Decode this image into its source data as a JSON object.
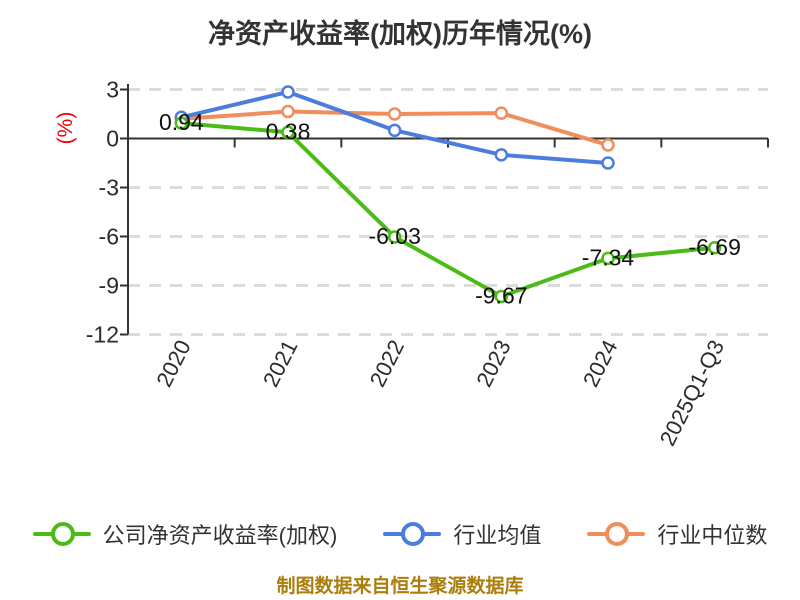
{
  "title": "净资产收益率(加权)历年情况(%)",
  "y_axis": {
    "label": "(%)",
    "label_color": "#ee0000",
    "ticks": [
      3,
      0,
      -3,
      -6,
      -9,
      -12
    ],
    "min": -12,
    "max": 3
  },
  "chart_data": {
    "type": "line",
    "title": "净资产收益率(加权)历年情况(%)",
    "categories": [
      "2020",
      "2021",
      "2022",
      "2023",
      "2024",
      "2025Q1-Q3"
    ],
    "series": [
      {
        "name": "公司净资产收益率(加权)",
        "color": "#4cbb17",
        "values": [
          0.94,
          0.38,
          -6.03,
          -9.67,
          -7.34,
          -6.69
        ],
        "point_labels": [
          "0.94",
          "0.38",
          "-6.03",
          "-9.67",
          "-7.34",
          "-6.69"
        ]
      },
      {
        "name": "行业均值",
        "color": "#4d7cdf",
        "values": [
          1.3,
          2.85,
          0.5,
          -1.0,
          -1.5,
          null
        ],
        "point_labels": null
      },
      {
        "name": "行业中位数",
        "color": "#f18d5b",
        "values": [
          1.2,
          1.65,
          1.5,
          1.55,
          -0.4,
          null
        ],
        "point_labels": null
      }
    ],
    "ylabel": "(%)",
    "ylim": [
      -12,
      3
    ],
    "xlabel": "",
    "grid": "dashed-horizontal",
    "x_label_rotation": -63,
    "legend_position": "bottom"
  },
  "legend": {
    "items": [
      "公司净资产收益率(加权)",
      "行业均值",
      "行业中位数"
    ]
  },
  "footer": {
    "text": "制图数据来自恒生聚源数据库",
    "color": "#ab7e0c"
  },
  "colors": {
    "title_text": "#333333",
    "axis_line": "#333333",
    "grid_line": "#dcdcdc",
    "tick_label": "#2b2b2b",
    "data_label": "#111111",
    "background": "#ffffff"
  }
}
